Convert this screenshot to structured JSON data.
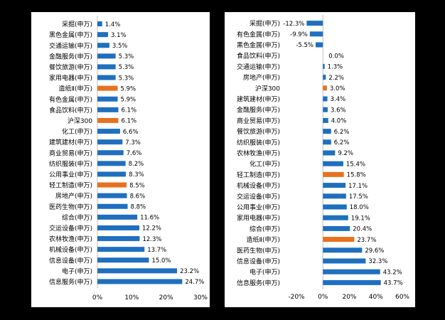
{
  "colors": {
    "default_bar": "#1F6FBF",
    "highlight_bar": "#E8711F",
    "background": "#000000",
    "panel": "#FFFFFF"
  },
  "chart_data": [
    {
      "type": "bar",
      "orientation": "horizontal",
      "title": "",
      "xlabel": "",
      "ylabel": "",
      "xlim": [
        0,
        30
      ],
      "x_ticks": [
        "0%",
        "10%",
        "20%",
        "30%"
      ],
      "grid": false,
      "categories": [
        "采掘(申万)",
        "黑色金属(申万)",
        "交通运输(申万)",
        "金融服务(申万)",
        "餐饮旅游(申万)",
        "家用电器(申万)",
        "造纸Ⅱ(申万)",
        "有色金属(申万)",
        "食品饮料(申万)",
        "沪深300",
        "化工(申万)",
        "建筑建材(申万)",
        "商业贸易(申万)",
        "纺织服装(申万)",
        "公用事业(申万)",
        "轻工制造(申万)",
        "房地产(申万)",
        "医药生物(申万)",
        "综合(申万)",
        "交运设备(申万)",
        "农林牧渔(申万)",
        "机械设备(申万)",
        "信息设备(申万)",
        "电子(申万)",
        "信息服务(申万)"
      ],
      "values": [
        1.4,
        3.1,
        3.5,
        5.3,
        5.3,
        5.3,
        5.9,
        5.9,
        6.1,
        6.1,
        6.6,
        7.3,
        7.6,
        8.2,
        8.3,
        8.5,
        8.6,
        8.8,
        11.6,
        12.2,
        12.3,
        13.7,
        15.0,
        23.2,
        24.7
      ],
      "value_labels": [
        "1.4%",
        "3.1%",
        "3.5%",
        "5.3%",
        "5.3%",
        "5.3%",
        "5.9%",
        "5.9%",
        "6.1%",
        "6.1%",
        "6.6%",
        "7.3%",
        "7.6%",
        "8.2%",
        "8.3%",
        "8.5%",
        "8.6%",
        "8.8%",
        "11.6%",
        "12.2%",
        "12.3%",
        "13.7%",
        "15.0%",
        "23.2%",
        "24.7%"
      ],
      "highlight": [
        "造纸Ⅱ(申万)",
        "沪深300",
        "轻工制造(申万)"
      ]
    },
    {
      "type": "bar",
      "orientation": "horizontal",
      "title": "",
      "xlabel": "",
      "ylabel": "",
      "xlim": [
        -20,
        60
      ],
      "x_ticks": [
        "-20%",
        "0%",
        "20%",
        "40%",
        "60%"
      ],
      "grid": false,
      "categories": [
        "采掘(申万)",
        "有色金属(申万)",
        "黑色金属(申万)",
        "食品饮料(申万)",
        "交通运输(申万)",
        "房地产(申万)",
        "沪深300",
        "建筑建材(申万)",
        "金融服务(申万)",
        "商业贸易(申万)",
        "餐饮旅游(申万)",
        "纺织服装(申万)",
        "农林牧渔(申万)",
        "化工(申万)",
        "轻工制造(申万)",
        "机械设备(申万)",
        "交运设备(申万)",
        "公用事业(申万)",
        "家用电器(申万)",
        "综合(申万)",
        "造纸Ⅱ(申万)",
        "医药生物(申万)",
        "信息设备(申万)",
        "电子(申万)",
        "信息服务(申万)"
      ],
      "values": [
        -12.3,
        -9.9,
        -5.5,
        0.0,
        1.3,
        2.2,
        3.0,
        3.4,
        3.6,
        4.0,
        6.2,
        6.2,
        9.2,
        15.4,
        15.8,
        17.1,
        17.5,
        18.0,
        19.1,
        20.4,
        23.7,
        29.6,
        32.3,
        43.2,
        43.7
      ],
      "value_labels": [
        "-12.3%",
        "-9.9%",
        "-5.5%",
        "0.0%",
        "1.3%",
        "2.2%",
        "3.0%",
        "3.4%",
        "3.6%",
        "4.0%",
        "6.2%",
        "6.2%",
        "9.2%",
        "15.4%",
        "15.8%",
        "17.1%",
        "17.5%",
        "18.0%",
        "19.1%",
        "20.4%",
        "23.7%",
        "29.6%",
        "32.3%",
        "43.2%",
        "43.7%"
      ],
      "highlight": [
        "沪深300",
        "轻工制造(申万)",
        "造纸Ⅱ(申万)"
      ]
    }
  ]
}
